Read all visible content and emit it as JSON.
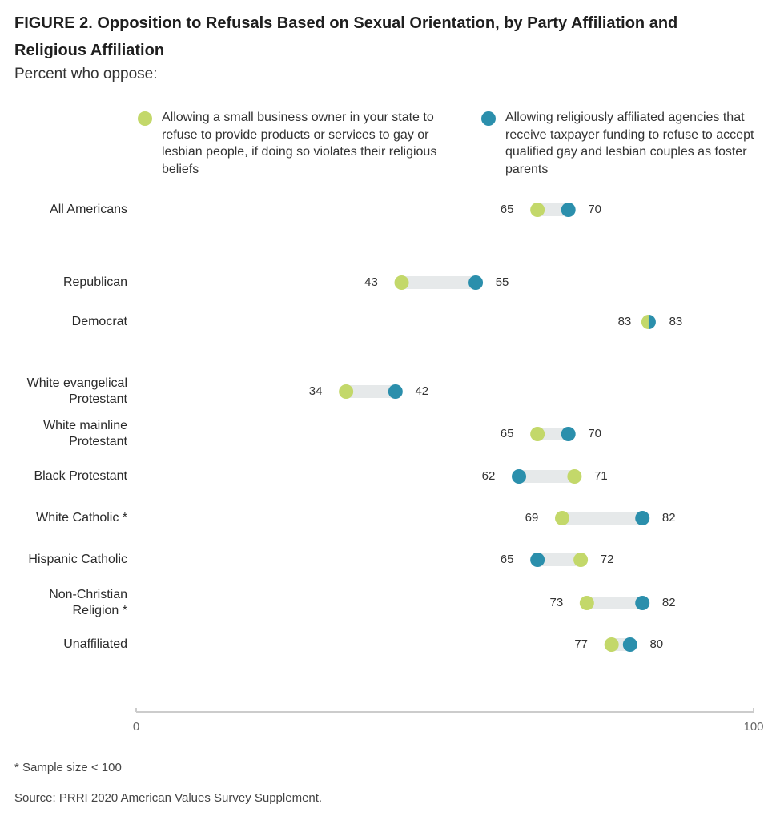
{
  "figure": {
    "title": "FIGURE 2. Opposition to Refusals Based on Sexual Orientation, by Party Affiliation and Religious Affiliation",
    "subtitle": "Percent who oppose:",
    "footnote": "* Sample size < 100",
    "source": "Source: PRRI 2020 American Values Survey Supplement."
  },
  "colors": {
    "small_business": "#c3d86a",
    "foster_agencies": "#2b8fac",
    "connector": "#e6e9ea",
    "axis": "#cccccc"
  },
  "chart_data": {
    "type": "dumbbell",
    "title": "FIGURE 2. Opposition to Refusals Based on Sexual Orientation, by Party Affiliation and Religious Affiliation",
    "subtitle": "Percent who oppose:",
    "xlim": [
      0,
      100
    ],
    "x_ticks": [
      0,
      100
    ],
    "grid": false,
    "legend_position": "top",
    "series": [
      {
        "key": "small_business",
        "name": "Allowing a small business owner in your state to refuse to provide products or services to gay or lesbian people, if doing so violates their religious beliefs",
        "color": "#c3d86a"
      },
      {
        "key": "foster_agencies",
        "name": "Allowing religiously affiliated agencies that receive taxpayer funding to refuse to accept qualified gay and lesbian couples as foster parents",
        "color": "#2b8fac"
      }
    ],
    "rows": [
      {
        "label": [
          "All Americans"
        ],
        "small_business": 65,
        "foster_agencies": 70
      },
      {
        "label": [
          "Republican"
        ],
        "small_business": 43,
        "foster_agencies": 55
      },
      {
        "label": [
          "Democrat"
        ],
        "small_business": 83,
        "foster_agencies": 83
      },
      {
        "label": [
          "White evangelical",
          "Protestant"
        ],
        "small_business": 34,
        "foster_agencies": 42
      },
      {
        "label": [
          "White mainline",
          "Protestant"
        ],
        "small_business": 65,
        "foster_agencies": 70
      },
      {
        "label": [
          "Black Protestant"
        ],
        "small_business": 71,
        "foster_agencies": 62
      },
      {
        "label": [
          "White Catholic *"
        ],
        "small_business": 69,
        "foster_agencies": 82
      },
      {
        "label": [
          "Hispanic Catholic"
        ],
        "small_business": 72,
        "foster_agencies": 65
      },
      {
        "label": [
          "Non-Christian",
          "Religion *"
        ],
        "small_business": 73,
        "foster_agencies": 82
      },
      {
        "label": [
          "Unaffiliated"
        ],
        "small_business": 77,
        "foster_agencies": 80
      }
    ]
  }
}
